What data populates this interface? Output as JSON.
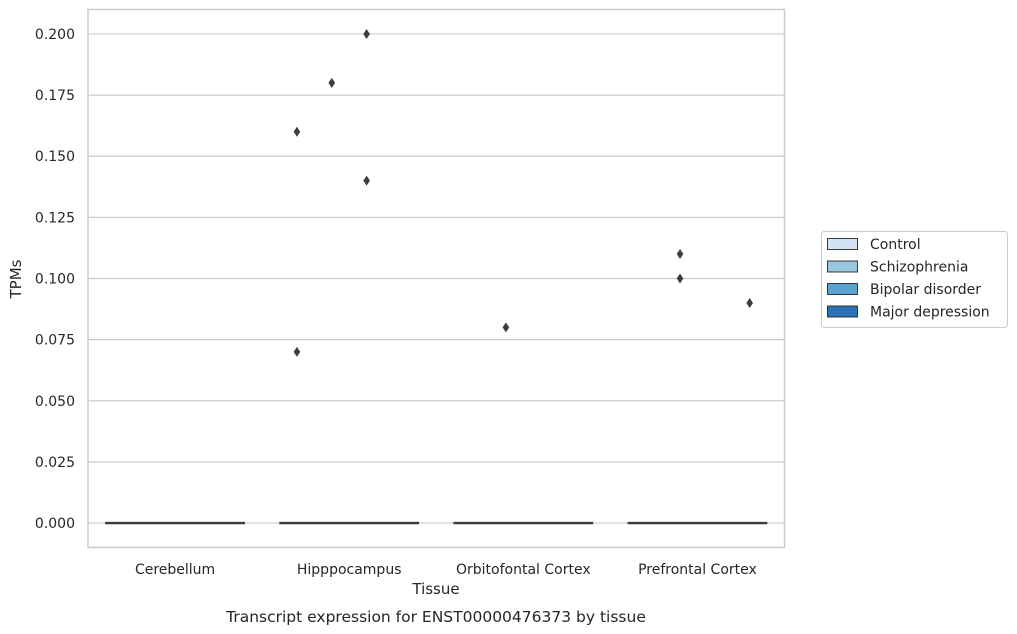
{
  "chart_data": {
    "type": "box",
    "title": "",
    "caption": "Transcript expression for ENST00000476373 by tissue",
    "xlabel": "Tissue",
    "ylabel": "TPMs",
    "categories": [
      "Cerebellum",
      "Hipppocampus",
      "Orbitofontal Cortex",
      "Prefrontal Cortex"
    ],
    "ylim": [
      -0.01,
      0.21
    ],
    "yticks": [
      "0.000",
      "0.025",
      "0.050",
      "0.075",
      "0.100",
      "0.125",
      "0.150",
      "0.175",
      "0.200"
    ],
    "grid": true,
    "legend_position": "right",
    "series": [
      {
        "name": "Control",
        "color": "#d1e2f2",
        "boxes": [
          {
            "category": "Cerebellum",
            "q1": 0,
            "median": 0,
            "q3": 0,
            "whisker_low": 0,
            "whisker_high": 0,
            "outliers": []
          },
          {
            "category": "Hipppocampus",
            "q1": 0,
            "median": 0,
            "q3": 0,
            "whisker_low": 0,
            "whisker_high": 0,
            "outliers": [
              0.07,
              0.16
            ]
          },
          {
            "category": "Orbitofontal Cortex",
            "q1": 0,
            "median": 0,
            "q3": 0,
            "whisker_low": 0,
            "whisker_high": 0,
            "outliers": []
          },
          {
            "category": "Prefrontal Cortex",
            "q1": 0,
            "median": 0,
            "q3": 0,
            "whisker_low": 0,
            "whisker_high": 0,
            "outliers": []
          }
        ]
      },
      {
        "name": "Schizophrenia",
        "color": "#9ac7e0",
        "boxes": [
          {
            "category": "Cerebellum",
            "q1": 0,
            "median": 0,
            "q3": 0,
            "whisker_low": 0,
            "whisker_high": 0,
            "outliers": []
          },
          {
            "category": "Hipppocampus",
            "q1": 0,
            "median": 0,
            "q3": 0,
            "whisker_low": 0,
            "whisker_high": 0,
            "outliers": [
              0.18
            ]
          },
          {
            "category": "Orbitofontal Cortex",
            "q1": 0,
            "median": 0,
            "q3": 0,
            "whisker_low": 0,
            "whisker_high": 0,
            "outliers": [
              0.08
            ]
          },
          {
            "category": "Prefrontal Cortex",
            "q1": 0,
            "median": 0,
            "q3": 0,
            "whisker_low": 0,
            "whisker_high": 0,
            "outliers": [
              0.1,
              0.11
            ]
          }
        ]
      },
      {
        "name": "Bipolar disorder",
        "color": "#5ba2cf",
        "boxes": [
          {
            "category": "Cerebellum",
            "q1": 0,
            "median": 0,
            "q3": 0,
            "whisker_low": 0,
            "whisker_high": 0,
            "outliers": []
          },
          {
            "category": "Hipppocampus",
            "q1": 0,
            "median": 0,
            "q3": 0,
            "whisker_low": 0,
            "whisker_high": 0,
            "outliers": [
              0.14,
              0.2
            ]
          },
          {
            "category": "Orbitofontal Cortex",
            "q1": 0,
            "median": 0,
            "q3": 0,
            "whisker_low": 0,
            "whisker_high": 0,
            "outliers": []
          },
          {
            "category": "Prefrontal Cortex",
            "q1": 0,
            "median": 0,
            "q3": 0,
            "whisker_low": 0,
            "whisker_high": 0,
            "outliers": []
          }
        ]
      },
      {
        "name": "Major depression",
        "color": "#2a73b5",
        "boxes": [
          {
            "category": "Cerebellum",
            "q1": 0,
            "median": 0,
            "q3": 0,
            "whisker_low": 0,
            "whisker_high": 0,
            "outliers": []
          },
          {
            "category": "Hipppocampus",
            "q1": 0,
            "median": 0,
            "q3": 0,
            "whisker_low": 0,
            "whisker_high": 0,
            "outliers": []
          },
          {
            "category": "Orbitofontal Cortex",
            "q1": 0,
            "median": 0,
            "q3": 0,
            "whisker_low": 0,
            "whisker_high": 0,
            "outliers": []
          },
          {
            "category": "Prefrontal Cortex",
            "q1": 0,
            "median": 0,
            "q3": 0,
            "whisker_low": 0,
            "whisker_high": 0,
            "outliers": [
              0.09
            ]
          }
        ]
      }
    ]
  }
}
